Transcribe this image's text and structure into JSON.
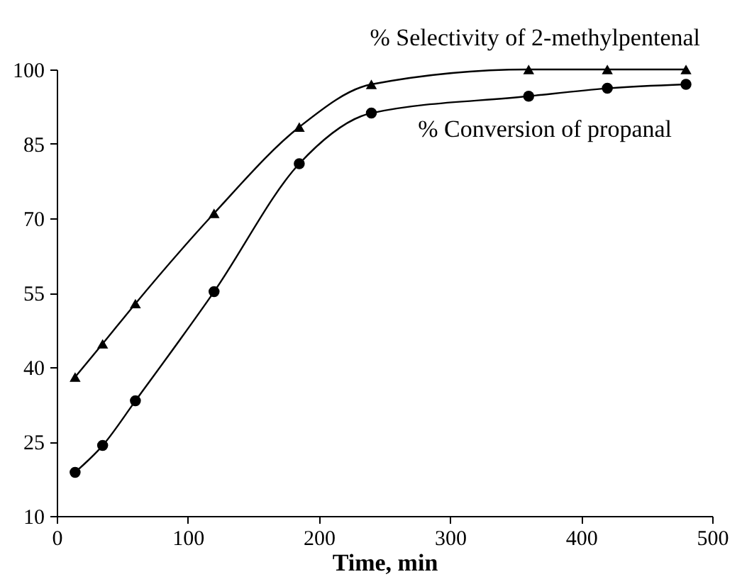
{
  "chart_data": {
    "type": "line",
    "xlabel": "Time, min",
    "x": [
      14,
      35,
      60,
      120,
      185,
      240,
      360,
      420,
      480
    ],
    "series": [
      {
        "name": "% Selectivity of  2-methylpentenal",
        "color": "#000000",
        "marker": "triangle",
        "values": [
          38,
          44.7,
          52.8,
          71,
          88.4,
          97,
          100,
          100,
          100
        ]
      },
      {
        "name": "% Conversion  of  propanal",
        "color": "#000000",
        "marker": "circle",
        "values": [
          18.8,
          24.2,
          33.2,
          55.2,
          81,
          91.2,
          94.6,
          96.2,
          97
        ]
      }
    ],
    "xlim": [
      0,
      500
    ],
    "xticks": [
      0,
      100,
      200,
      300,
      400,
      500
    ],
    "ylim": [
      10,
      100
    ],
    "yticks": [
      10,
      25,
      40,
      55,
      70,
      85,
      100
    ],
    "grid": false,
    "line_style": "solid"
  }
}
